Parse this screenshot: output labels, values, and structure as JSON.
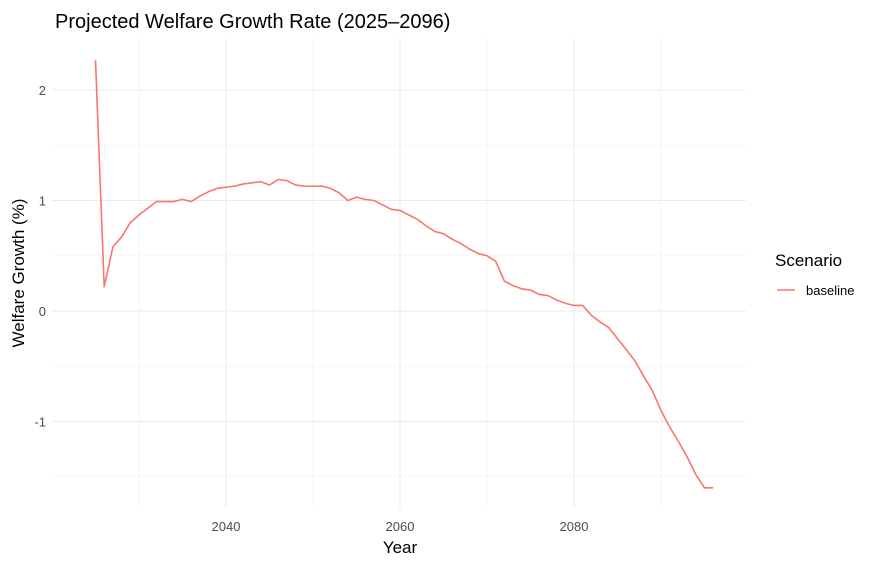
{
  "chart_data": {
    "type": "line",
    "title": "Projected Welfare Growth Rate (2025–2096)",
    "xlabel": "Year",
    "ylabel": "Welfare Growth (%)",
    "xlim": [
      2025,
      2096
    ],
    "ylim": [
      -1.6,
      2.27
    ],
    "x_ticks": [
      2040,
      2060,
      2080
    ],
    "x_tick_labels": [
      "2040",
      "2060",
      "2080"
    ],
    "y_ticks": [
      -1,
      0,
      1,
      2
    ],
    "y_tick_labels": [
      "-1",
      "0",
      "1",
      "2"
    ],
    "grid": true,
    "legend": {
      "title": "Scenario",
      "position": "right"
    },
    "x": [
      2025,
      2026,
      2027,
      2028,
      2029,
      2030,
      2031,
      2032,
      2033,
      2034,
      2035,
      2036,
      2037,
      2038,
      2039,
      2040,
      2041,
      2042,
      2043,
      2044,
      2045,
      2046,
      2047,
      2048,
      2049,
      2050,
      2051,
      2052,
      2053,
      2054,
      2055,
      2056,
      2057,
      2058,
      2059,
      2060,
      2061,
      2062,
      2063,
      2064,
      2065,
      2066,
      2067,
      2068,
      2069,
      2070,
      2071,
      2072,
      2073,
      2074,
      2075,
      2076,
      2077,
      2078,
      2079,
      2080,
      2081,
      2082,
      2083,
      2084,
      2085,
      2086,
      2087,
      2088,
      2089,
      2090,
      2091,
      2092,
      2093,
      2094,
      2095,
      2096
    ],
    "series": [
      {
        "name": "baseline",
        "color": "#f8766d",
        "values": [
          2.27,
          0.22,
          0.58,
          0.67,
          0.8,
          0.87,
          0.93,
          0.99,
          0.99,
          0.99,
          1.01,
          0.99,
          1.04,
          1.08,
          1.11,
          1.12,
          1.13,
          1.15,
          1.16,
          1.17,
          1.14,
          1.19,
          1.18,
          1.14,
          1.13,
          1.13,
          1.13,
          1.11,
          1.07,
          1.0,
          1.03,
          1.01,
          1.0,
          0.96,
          0.92,
          0.91,
          0.87,
          0.83,
          0.77,
          0.72,
          0.7,
          0.65,
          0.61,
          0.56,
          0.52,
          0.5,
          0.45,
          0.27,
          0.23,
          0.2,
          0.19,
          0.15,
          0.14,
          0.1,
          0.07,
          0.05,
          0.05,
          -0.04,
          -0.1,
          -0.15,
          -0.25,
          -0.35,
          -0.45,
          -0.59,
          -0.72,
          -0.9,
          -1.05,
          -1.18,
          -1.32,
          -1.48,
          -1.6,
          -1.6
        ]
      }
    ]
  }
}
